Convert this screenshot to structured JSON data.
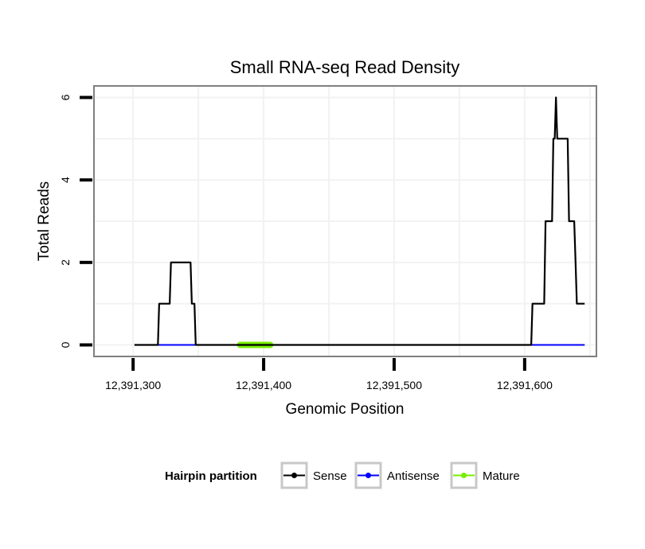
{
  "chart_data": {
    "type": "line",
    "title": "Small RNA-seq Read Density",
    "xlabel": "Genomic Position",
    "ylabel": "Total Reads",
    "xlim": [
      12391270,
      12391655
    ],
    "ylim": [
      -0.28,
      6.28
    ],
    "x_ticks": [
      12391300,
      12391400,
      12391500,
      12391600
    ],
    "x_tick_labels": [
      "12,391,300",
      "12,391,400",
      "12,391,500",
      "12,391,600"
    ],
    "y_ticks": [
      0,
      2,
      4,
      6
    ],
    "y_tick_labels": [
      "0",
      "2",
      "4",
      "6"
    ],
    "grid": true,
    "legend": {
      "title": "Hairpin partition",
      "position": "bottom",
      "entries": [
        {
          "name": "Sense",
          "color": "#000000"
        },
        {
          "name": "Antisense",
          "color": "#0000ff"
        },
        {
          "name": "Mature",
          "color": "#77ee00"
        }
      ]
    },
    "series": [
      {
        "name": "Sense",
        "color": "#000000",
        "points": [
          [
            12391301,
            0
          ],
          [
            12391319,
            0
          ],
          [
            12391320,
            1
          ],
          [
            12391328,
            1
          ],
          [
            12391329,
            2
          ],
          [
            12391344,
            2
          ],
          [
            12391345,
            1
          ],
          [
            12391347,
            1
          ],
          [
            12391348,
            0
          ],
          [
            12391605,
            0
          ],
          [
            12391606,
            1
          ],
          [
            12391615,
            1
          ],
          [
            12391616,
            3
          ],
          [
            12391621,
            3
          ],
          [
            12391622,
            5
          ],
          [
            12391623,
            5
          ],
          [
            12391624,
            6
          ],
          [
            12391625,
            5
          ],
          [
            12391633,
            5
          ],
          [
            12391634,
            3
          ],
          [
            12391638,
            3
          ],
          [
            12391639,
            2
          ],
          [
            12391640,
            1
          ],
          [
            12391646,
            1
          ]
        ]
      },
      {
        "name": "Antisense",
        "color": "#0000ff",
        "points": [
          [
            12391319,
            0
          ],
          [
            12391348,
            0
          ],
          [
            12391605,
            0
          ],
          [
            12391646,
            0
          ]
        ]
      },
      {
        "name": "Mature",
        "color": "#77ee00",
        "points": [
          [
            12391382,
            0
          ],
          [
            12391405,
            0
          ]
        ]
      }
    ]
  }
}
